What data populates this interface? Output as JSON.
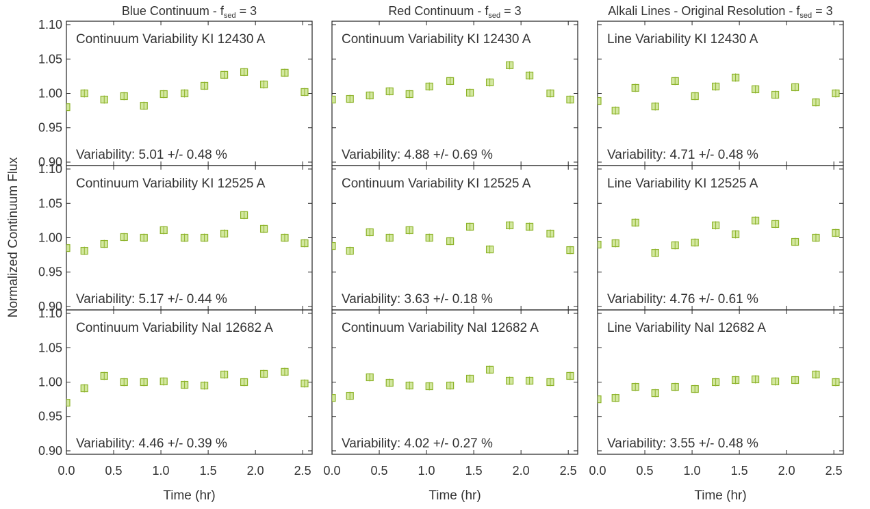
{
  "figure": {
    "ylabel": "Normalized Continuum Flux",
    "xlabel": "Time (hr)",
    "marker_color": "#8db32a",
    "marker_fill": "#d3e8a0"
  },
  "chart_data": {
    "type": "scatter",
    "xlim": [
      0.0,
      2.6
    ],
    "ylim": [
      0.895,
      1.105
    ],
    "xticks": [
      "0.0",
      "0.5",
      "1.0",
      "1.5",
      "2.0",
      "2.5"
    ],
    "yticks": [
      "0.90",
      "0.95",
      "1.00",
      "1.05",
      "1.10"
    ],
    "x": [
      0.0,
      0.19,
      0.4,
      0.61,
      0.82,
      1.03,
      1.25,
      1.46,
      1.67,
      1.88,
      2.09,
      2.31,
      2.52
    ],
    "columns": [
      {
        "title": "Blue Continuum  - f",
        "sub": "sed",
        "suffix": " = 3"
      },
      {
        "title": "Red Continuum  - f",
        "sub": "sed",
        "suffix": " = 3"
      },
      {
        "title": "Alkali Lines - Original Resolution  - f",
        "sub": "sed",
        "suffix": " = 3"
      }
    ],
    "panels": [
      {
        "label": "Continuum Variability KI 12430 A",
        "variability": "Variability:  5.01 +/-  0.48 %",
        "y": [
          0.98,
          1.0,
          0.991,
          0.996,
          0.982,
          0.999,
          1.0,
          1.011,
          1.027,
          1.031,
          1.013,
          1.03,
          1.002
        ]
      },
      {
        "label": "Continuum Variability KI 12430 A",
        "variability": "Variability:  4.88 +/-  0.69 %",
        "y": [
          0.991,
          0.992,
          0.997,
          1.003,
          0.999,
          1.01,
          1.018,
          1.001,
          1.016,
          1.041,
          1.026,
          1.0,
          0.991
        ]
      },
      {
        "label": "Line Variability KI 12430 A",
        "variability": "Variability:  4.71 +/-  0.48 %",
        "y": [
          0.989,
          0.975,
          1.008,
          0.981,
          1.018,
          0.996,
          1.01,
          1.023,
          1.006,
          0.998,
          1.009,
          0.987,
          1.0
        ]
      },
      {
        "label": "Continuum Variability KI 12525 A",
        "variability": "Variability:  5.17 +/-  0.44 %",
        "y": [
          0.985,
          0.981,
          0.991,
          1.001,
          1.0,
          1.011,
          1.0,
          1.0,
          1.006,
          1.033,
          1.013,
          1.0,
          0.992
        ]
      },
      {
        "label": "Continuum Variability KI 12525 A",
        "variability": "Variability:  3.63 +/-  0.18 %",
        "y": [
          0.988,
          0.981,
          1.008,
          1.0,
          1.011,
          1.0,
          0.995,
          1.016,
          0.983,
          1.018,
          1.016,
          1.006,
          0.982
        ]
      },
      {
        "label": "Line Variability KI 12525 A",
        "variability": "Variability:  4.76 +/-  0.61 %",
        "y": [
          0.99,
          0.992,
          1.022,
          0.978,
          0.989,
          0.993,
          1.018,
          1.005,
          1.025,
          1.02,
          0.994,
          1.0,
          1.007
        ]
      },
      {
        "label": "Continuum Variability NaI 12682 A",
        "variability": "Variability:  4.46 +/-  0.39 %",
        "y": [
          0.97,
          0.991,
          1.009,
          1.0,
          1.0,
          1.001,
          0.996,
          0.995,
          1.011,
          1.0,
          1.012,
          1.015,
          0.998
        ]
      },
      {
        "label": "Continuum Variability NaI 12682 A",
        "variability": "Variability:  4.02 +/-  0.27 %",
        "y": [
          0.977,
          0.98,
          1.007,
          0.999,
          0.995,
          0.994,
          0.995,
          1.005,
          1.018,
          1.002,
          1.002,
          1.0,
          1.009
        ]
      },
      {
        "label": "Line Variability NaI 12682 A",
        "variability": "Variability:  3.55 +/-  0.48 %",
        "y": [
          0.975,
          0.977,
          0.993,
          0.984,
          0.993,
          0.99,
          1.0,
          1.003,
          1.004,
          1.001,
          1.003,
          1.011,
          1.0
        ]
      }
    ]
  }
}
